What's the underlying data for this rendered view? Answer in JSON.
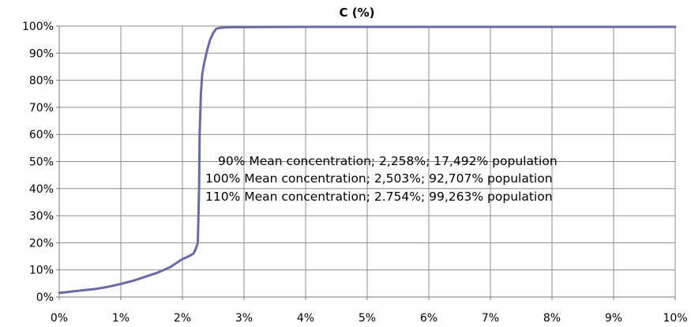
{
  "chart_data": {
    "type": "line",
    "title": "C (%)",
    "xlabel": "",
    "ylabel": "",
    "xlim": [
      0,
      10
    ],
    "ylim": [
      0,
      100
    ],
    "x_ticks": [
      0,
      1,
      2,
      3,
      4,
      5,
      6,
      7,
      8,
      9,
      10
    ],
    "x_tick_labels": [
      "0%",
      "1%",
      "2%",
      "3%",
      "4%",
      "5%",
      "6%",
      "7%",
      "8%",
      "9%",
      "10%"
    ],
    "y_ticks": [
      0,
      10,
      20,
      30,
      40,
      50,
      60,
      70,
      80,
      90,
      100
    ],
    "y_tick_labels": [
      "0%",
      "10%",
      "20%",
      "30%",
      "40%",
      "50%",
      "60%",
      "70%",
      "80%",
      "90%",
      "100%"
    ],
    "grid": true,
    "legend": "none",
    "series_color": "#6b6ba3",
    "series": [
      {
        "x": [
          0,
          0.2,
          0.4,
          0.6,
          0.8,
          1.0,
          1.2,
          1.4,
          1.6,
          1.8,
          1.9,
          2.0,
          2.1,
          2.18,
          2.22,
          2.25,
          2.27,
          2.28,
          2.3,
          2.32,
          2.35,
          2.4,
          2.45,
          2.5,
          2.55,
          2.6,
          2.7,
          2.8,
          3.0,
          4.0,
          5.0,
          6.0,
          7.0,
          8.0,
          9.0,
          10.0
        ],
        "y": [
          1.5,
          2,
          2.5,
          3,
          3.8,
          4.8,
          6,
          7.5,
          9,
          11,
          12.5,
          14,
          15,
          16,
          18,
          20,
          40,
          60,
          75,
          82,
          86,
          91,
          95,
          97.5,
          99,
          99.3,
          99.5,
          99.6,
          99.6,
          99.7,
          99.7,
          99.7,
          99.7,
          99.7,
          99.7,
          99.7
        ]
      }
    ],
    "annotations": [
      "90% Mean concentration; 2,258%; 17,492% population",
      "100% Mean concentration; 2,503%; 92,707% population",
      "110% Mean concentration; 2.754%; 99,263% population"
    ]
  }
}
